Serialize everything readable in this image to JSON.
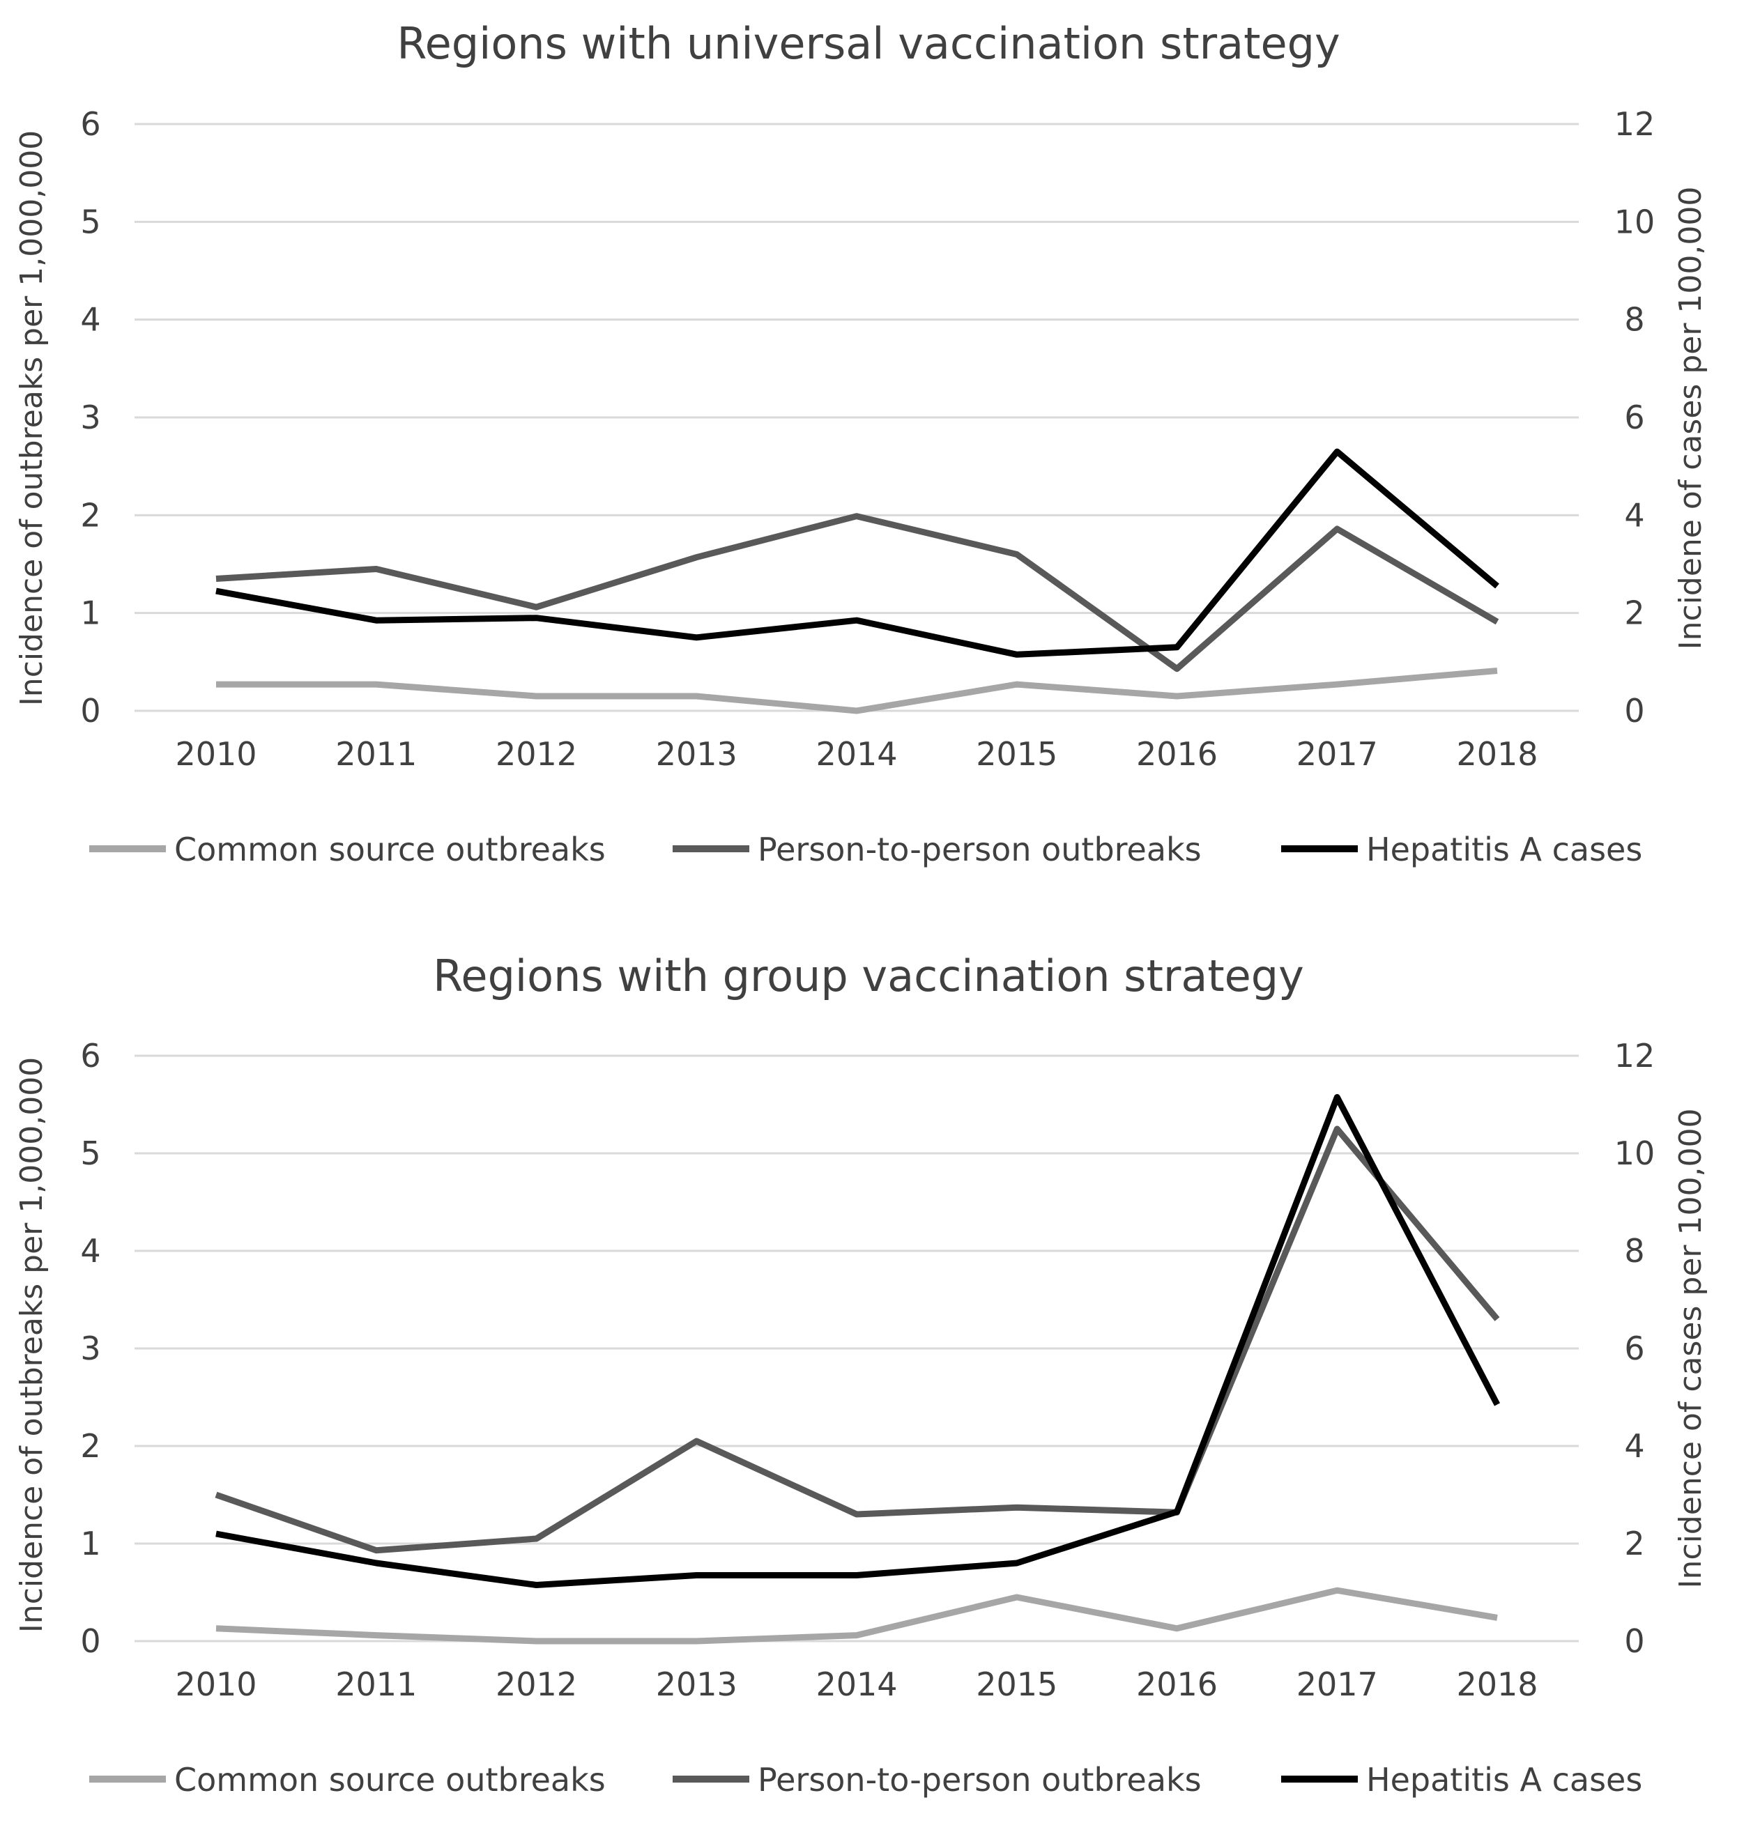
{
  "chart_data": [
    {
      "type": "line",
      "title": "Regions with universal vaccination strategy",
      "categories": [
        "2010",
        "2011",
        "2012",
        "2013",
        "2014",
        "2015",
        "2016",
        "2017",
        "2018"
      ],
      "ylabel_left": "Incidence of outbreaks per 1,000,000",
      "ylabel_right": "Incidene of cases per 100,000",
      "ylim_left": [
        0,
        6
      ],
      "ylim_right": [
        0,
        12
      ],
      "yticks_left": [
        "0",
        "1",
        "2",
        "3",
        "4",
        "5",
        "6"
      ],
      "yticks_right": [
        "0",
        "2",
        "4",
        "6",
        "8",
        "10",
        "12"
      ],
      "grid": true,
      "legend_position": "bottom",
      "series": [
        {
          "name": "Common source outbreaks",
          "axis": "left",
          "color": "#a6a6a6",
          "values": [
            0.27,
            0.27,
            0.15,
            0.15,
            0.0,
            0.27,
            0.15,
            0.27,
            0.41
          ]
        },
        {
          "name": "Person-to-person outbreaks",
          "axis": "left",
          "color": "#595959",
          "values": [
            1.35,
            1.45,
            1.06,
            1.57,
            1.99,
            1.6,
            0.43,
            1.86,
            0.91
          ]
        },
        {
          "name": "Hepatitis A cases",
          "axis": "right",
          "color": "#000000",
          "values": [
            2.45,
            1.85,
            1.9,
            1.5,
            1.85,
            1.15,
            1.3,
            5.3,
            2.55
          ]
        }
      ]
    },
    {
      "type": "line",
      "title": "Regions with group vaccination strategy",
      "categories": [
        "2010",
        "2011",
        "2012",
        "2013",
        "2014",
        "2015",
        "2016",
        "2017",
        "2018"
      ],
      "ylabel_left": "Incidence of outbreaks per 1,000,000",
      "ylabel_right": "Incidence of cases per 100,000",
      "ylim_left": [
        0,
        6
      ],
      "ylim_right": [
        0,
        12
      ],
      "yticks_left": [
        "0",
        "1",
        "2",
        "3",
        "4",
        "5",
        "6"
      ],
      "yticks_right": [
        "0",
        "2",
        "4",
        "6",
        "8",
        "10",
        "12"
      ],
      "grid": true,
      "legend_position": "bottom",
      "series": [
        {
          "name": "Common source outbreaks",
          "axis": "left",
          "color": "#a6a6a6",
          "values": [
            0.13,
            0.06,
            0.0,
            0.0,
            0.06,
            0.45,
            0.13,
            0.52,
            0.24
          ]
        },
        {
          "name": "Person-to-person outbreaks",
          "axis": "left",
          "color": "#595959",
          "values": [
            1.5,
            0.93,
            1.05,
            2.05,
            1.3,
            1.37,
            1.32,
            5.25,
            3.3
          ]
        },
        {
          "name": "Hepatitis A cases",
          "axis": "right",
          "color": "#000000",
          "values": [
            2.2,
            1.6,
            1.15,
            1.35,
            1.35,
            1.6,
            2.65,
            11.15,
            4.85
          ]
        }
      ]
    }
  ]
}
